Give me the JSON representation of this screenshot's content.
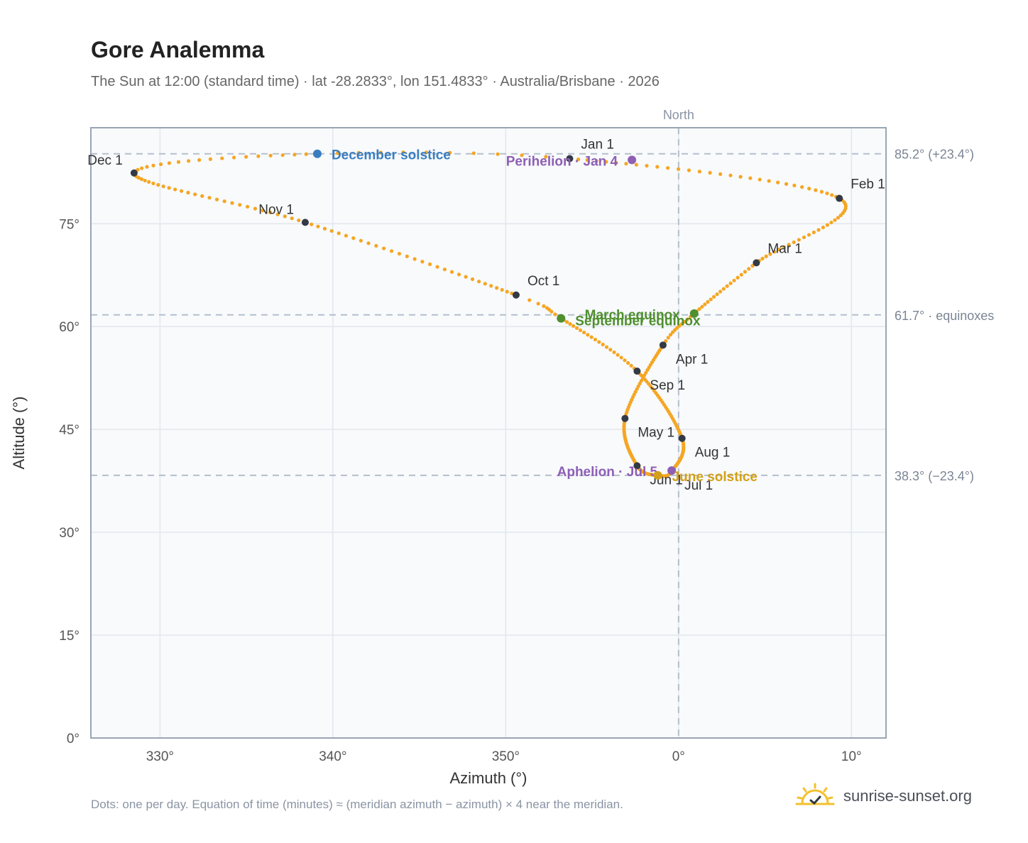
{
  "header": {
    "title": "Gore Analemma",
    "subtitle": "The Sun at 12:00 (standard time) · lat -28.2833°, lon 151.4833° · Australia/Brisbane · 2026"
  },
  "footer": {
    "note": "Dots: one per day. Equation of time (minutes) ≈ (meridian azimuth − azimuth) × 4 near the meridian.",
    "brand": "sunrise-sunset.org"
  },
  "colors": {
    "curve": "#f5a623",
    "month_marker": "#333a45",
    "december_solstice": "#3a7ebf",
    "june_solstice": "#d4a017",
    "equinox": "#4f8f2f",
    "apsis": "#8e5fb5",
    "plot_bg": "#f8fafc",
    "grid": "#e2e7ee",
    "frame": "#9aa5b4",
    "ref_line": "#b4bfcc"
  },
  "chart_data": {
    "type": "scatter",
    "xlabel": "Azimuth (°)",
    "ylabel": "Altitude (°)",
    "xlim": [
      326,
      12
    ],
    "ylim": [
      0,
      89
    ],
    "x_ticks": [
      {
        "value": 330,
        "label": "330°"
      },
      {
        "value": 340,
        "label": "340°"
      },
      {
        "value": 350,
        "label": "350°"
      },
      {
        "value": 0,
        "label": "0°"
      },
      {
        "value": 10,
        "label": "10°"
      }
    ],
    "y_ticks": [
      {
        "value": 0,
        "label": "0°"
      },
      {
        "value": 15,
        "label": "15°"
      },
      {
        "value": 30,
        "label": "30°"
      },
      {
        "value": 45,
        "label": "45°"
      },
      {
        "value": 60,
        "label": "60°"
      },
      {
        "value": 75,
        "label": "75°"
      }
    ],
    "grid": true,
    "north_line": {
      "azimuth": 0,
      "label": "North"
    },
    "reference_lines": [
      {
        "altitude": 85.2,
        "label": "85.2° (+23.4°)"
      },
      {
        "altitude": 61.7,
        "label": "61.7° · equinoxes"
      },
      {
        "altitude": 38.3,
        "label": "38.3° (−23.4°)"
      }
    ],
    "series": [
      {
        "kind": "daily",
        "keypoints": [
          {
            "date": "Jan 1",
            "azimuth": 353.7,
            "altitude": 84.5
          },
          {
            "date": "Feb 1",
            "azimuth": 9.3,
            "altitude": 78.7
          },
          {
            "date": "Mar 1",
            "azimuth": 4.5,
            "altitude": 69.3
          },
          {
            "date": "Mar 20",
            "azimuth": 0.9,
            "altitude": 61.9
          },
          {
            "date": "Apr 1",
            "azimuth": 359.1,
            "altitude": 57.3
          },
          {
            "date": "May 1",
            "azimuth": 356.9,
            "altitude": 46.6
          },
          {
            "date": "Jun 1",
            "azimuth": 357.6,
            "altitude": 39.7
          },
          {
            "date": "Jun 21",
            "azimuth": 358.8,
            "altitude": 38.3
          },
          {
            "date": "Jul 1",
            "azimuth": 359.6,
            "altitude": 38.9
          },
          {
            "date": "Aug 1",
            "azimuth": 0.2,
            "altitude": 43.7
          },
          {
            "date": "Sep 1",
            "azimuth": 357.6,
            "altitude": 53.5
          },
          {
            "date": "Sep 23",
            "azimuth": 353.2,
            "altitude": 61.2
          },
          {
            "date": "Oct 1",
            "azimuth": 350.6,
            "altitude": 64.6
          },
          {
            "date": "Nov 1",
            "azimuth": 338.4,
            "altitude": 75.2
          },
          {
            "date": "Dec 1",
            "azimuth": 328.5,
            "altitude": 82.4
          },
          {
            "date": "Dec 21",
            "azimuth": 339.1,
            "altitude": 85.2
          },
          {
            "date": "Jan 1",
            "azimuth": 353.7,
            "altitude": 84.5
          }
        ]
      }
    ],
    "month_markers": [
      {
        "label": "Jan 1",
        "azimuth": 353.7,
        "altitude": 84.5,
        "pos": "above-right"
      },
      {
        "label": "Feb 1",
        "azimuth": 9.3,
        "altitude": 78.7,
        "pos": "above-right"
      },
      {
        "label": "Mar 1",
        "azimuth": 4.5,
        "altitude": 69.3,
        "pos": "above-right"
      },
      {
        "label": "Apr 1",
        "azimuth": 359.1,
        "altitude": 57.3,
        "pos": "below-right"
      },
      {
        "label": "May 1",
        "azimuth": 356.9,
        "altitude": 46.6,
        "pos": "below-right"
      },
      {
        "label": "Jun 1",
        "azimuth": 357.6,
        "altitude": 39.7,
        "pos": "below-right"
      },
      {
        "label": "Jul 1",
        "azimuth": 359.6,
        "altitude": 38.9,
        "pos": "below-right"
      },
      {
        "label": "Aug 1",
        "azimuth": 0.2,
        "altitude": 43.7,
        "pos": "below-right"
      },
      {
        "label": "Sep 1",
        "azimuth": 357.6,
        "altitude": 53.5,
        "pos": "below-right"
      },
      {
        "label": "Oct 1",
        "azimuth": 350.6,
        "altitude": 64.6,
        "pos": "above-right"
      },
      {
        "label": "Nov 1",
        "azimuth": 338.4,
        "altitude": 75.2,
        "pos": "above-left"
      },
      {
        "label": "Dec 1",
        "azimuth": 328.5,
        "altitude": 82.4,
        "pos": "above-left"
      }
    ],
    "events": [
      {
        "label": "December solstice",
        "azimuth": 339.1,
        "altitude": 85.2,
        "kind": "december_solstice",
        "pos": "right"
      },
      {
        "label": "Perihelion · Jan 4",
        "azimuth": 357.3,
        "altitude": 84.3,
        "kind": "apsis",
        "pos": "left"
      },
      {
        "label": "March equinox",
        "azimuth": 0.9,
        "altitude": 61.9,
        "kind": "equinox",
        "pos": "left"
      },
      {
        "label": "September equinox",
        "azimuth": 353.2,
        "altitude": 61.2,
        "kind": "equinox",
        "pos": "right-below"
      },
      {
        "label": "Aphelion · Jul 5",
        "azimuth": 359.6,
        "altitude": 39.0,
        "kind": "apsis",
        "pos": "left"
      },
      {
        "label": "June solstice",
        "azimuth": 358.8,
        "altitude": 38.3,
        "kind": "june_solstice",
        "pos": "right"
      }
    ]
  }
}
